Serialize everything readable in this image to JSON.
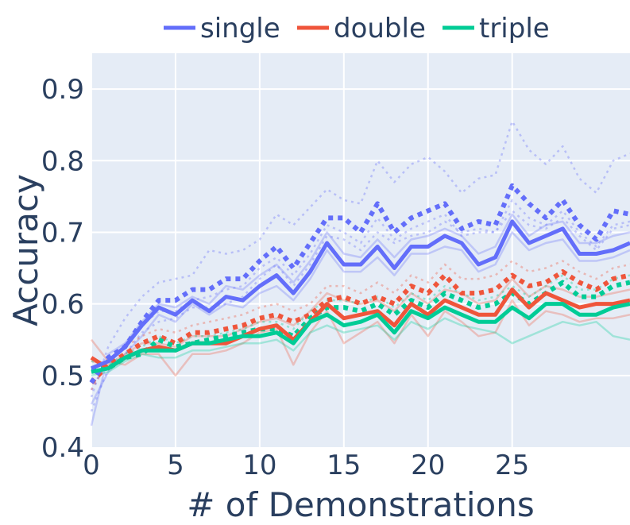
{
  "chart_data": {
    "type": "line",
    "title": "",
    "xlabel": "# of Demonstrations",
    "ylabel": "Accuracy",
    "xlim": [
      0,
      32
    ],
    "ylim": [
      0.4,
      0.95
    ],
    "xticks": [
      0,
      5,
      10,
      15,
      20,
      25
    ],
    "xtick_labels": [
      "0",
      "5",
      "10",
      "15",
      "20",
      "25"
    ],
    "yticks": [
      0.4,
      0.5,
      0.6,
      0.7,
      0.8,
      0.9
    ],
    "ytick_labels": [
      "0.4",
      "0.5",
      "0.6",
      "0.7",
      "0.8",
      "0.9"
    ],
    "grid": true,
    "legend_position": "top",
    "colors": {
      "single": "#636efa",
      "double": "#ef553b",
      "triple": "#00cc96",
      "plot_bg": "#e5ecf6",
      "grid": "#ffffff",
      "text": "#2a3f5f"
    },
    "x": [
      0,
      1,
      2,
      3,
      4,
      5,
      6,
      7,
      8,
      9,
      10,
      11,
      12,
      13,
      14,
      15,
      16,
      17,
      18,
      19,
      20,
      21,
      22,
      23,
      24,
      25,
      26,
      27,
      28,
      29,
      30,
      31,
      32
    ],
    "series": [
      {
        "name": "single",
        "role": "main",
        "color": "#636efa",
        "values": [
          0.51,
          0.52,
          0.54,
          0.57,
          0.595,
          0.585,
          0.605,
          0.59,
          0.61,
          0.605,
          0.625,
          0.64,
          0.615,
          0.645,
          0.685,
          0.655,
          0.655,
          0.68,
          0.65,
          0.68,
          0.68,
          0.695,
          0.685,
          0.655,
          0.665,
          0.715,
          0.685,
          0.695,
          0.705,
          0.67,
          0.67,
          0.675,
          0.685
        ]
      },
      {
        "name": "single dotted",
        "role": "dotted",
        "color": "#636efa",
        "values": [
          0.49,
          0.525,
          0.54,
          0.575,
          0.605,
          0.605,
          0.62,
          0.62,
          0.635,
          0.635,
          0.66,
          0.68,
          0.65,
          0.685,
          0.72,
          0.72,
          0.7,
          0.74,
          0.7,
          0.72,
          0.73,
          0.74,
          0.705,
          0.715,
          0.71,
          0.765,
          0.74,
          0.72,
          0.745,
          0.71,
          0.69,
          0.73,
          0.725
        ]
      },
      {
        "name": "double",
        "role": "main",
        "color": "#ef553b",
        "values": [
          0.525,
          0.51,
          0.525,
          0.535,
          0.54,
          0.535,
          0.545,
          0.545,
          0.545,
          0.555,
          0.565,
          0.57,
          0.55,
          0.575,
          0.6,
          0.58,
          0.585,
          0.59,
          0.57,
          0.6,
          0.585,
          0.605,
          0.595,
          0.585,
          0.585,
          0.62,
          0.595,
          0.615,
          0.605,
          0.595,
          0.6,
          0.6,
          0.605
        ]
      },
      {
        "name": "double dotted",
        "role": "dotted",
        "color": "#ef553b",
        "values": [
          0.49,
          0.515,
          0.53,
          0.545,
          0.555,
          0.545,
          0.56,
          0.56,
          0.565,
          0.57,
          0.58,
          0.585,
          0.575,
          0.585,
          0.605,
          0.61,
          0.6,
          0.61,
          0.6,
          0.625,
          0.615,
          0.64,
          0.615,
          0.615,
          0.62,
          0.64,
          0.625,
          0.63,
          0.645,
          0.63,
          0.62,
          0.635,
          0.64
        ]
      },
      {
        "name": "triple",
        "role": "main",
        "color": "#00cc96",
        "values": [
          0.505,
          0.51,
          0.525,
          0.535,
          0.535,
          0.535,
          0.545,
          0.545,
          0.55,
          0.555,
          0.555,
          0.56,
          0.545,
          0.575,
          0.585,
          0.57,
          0.575,
          0.585,
          0.56,
          0.59,
          0.58,
          0.595,
          0.585,
          0.575,
          0.575,
          0.595,
          0.58,
          0.6,
          0.6,
          0.585,
          0.585,
          0.595,
          0.6
        ]
      },
      {
        "name": "triple dotted",
        "role": "dotted",
        "color": "#00cc96",
        "values": [
          0.51,
          0.51,
          0.525,
          0.53,
          0.55,
          0.54,
          0.545,
          0.55,
          0.555,
          0.56,
          0.565,
          0.565,
          0.555,
          0.58,
          0.595,
          0.595,
          0.59,
          0.6,
          0.585,
          0.605,
          0.595,
          0.615,
          0.605,
          0.595,
          0.6,
          0.615,
          0.6,
          0.615,
          0.63,
          0.61,
          0.61,
          0.625,
          0.63
        ]
      }
    ],
    "faint_series": [
      {
        "color": "#636efa",
        "style": "solid",
        "values": [
          0.43,
          0.53,
          0.545,
          0.575,
          0.6,
          0.595,
          0.61,
          0.6,
          0.625,
          0.62,
          0.64,
          0.655,
          0.63,
          0.66,
          0.7,
          0.67,
          0.665,
          0.69,
          0.665,
          0.69,
          0.695,
          0.705,
          0.695,
          0.67,
          0.68,
          0.725,
          0.695,
          0.71,
          0.715,
          0.685,
          0.685,
          0.695,
          0.7
        ]
      },
      {
        "color": "#636efa",
        "style": "solid",
        "values": [
          0.46,
          0.505,
          0.53,
          0.555,
          0.585,
          0.575,
          0.6,
          0.585,
          0.6,
          0.595,
          0.615,
          0.625,
          0.605,
          0.635,
          0.675,
          0.645,
          0.645,
          0.665,
          0.64,
          0.67,
          0.67,
          0.68,
          0.675,
          0.645,
          0.655,
          0.7,
          0.675,
          0.685,
          0.69,
          0.66,
          0.66,
          0.665,
          0.675
        ]
      },
      {
        "color": "#636efa",
        "style": "dotted",
        "values": [
          0.47,
          0.54,
          0.58,
          0.61,
          0.63,
          0.635,
          0.64,
          0.675,
          0.67,
          0.675,
          0.69,
          0.725,
          0.71,
          0.735,
          0.76,
          0.745,
          0.74,
          0.8,
          0.77,
          0.795,
          0.805,
          0.785,
          0.755,
          0.775,
          0.78,
          0.855,
          0.815,
          0.795,
          0.82,
          0.775,
          0.755,
          0.8,
          0.81
        ]
      },
      {
        "color": "#636efa",
        "style": "dotted",
        "values": [
          0.48,
          0.52,
          0.54,
          0.57,
          0.59,
          0.59,
          0.605,
          0.61,
          0.62,
          0.625,
          0.65,
          0.665,
          0.64,
          0.67,
          0.71,
          0.7,
          0.685,
          0.72,
          0.69,
          0.705,
          0.715,
          0.725,
          0.695,
          0.7,
          0.7,
          0.745,
          0.72,
          0.71,
          0.73,
          0.7,
          0.68,
          0.71,
          0.715
        ]
      },
      {
        "color": "#636efa",
        "style": "dotted",
        "values": [
          0.45,
          0.51,
          0.53,
          0.56,
          0.575,
          0.58,
          0.595,
          0.595,
          0.6,
          0.61,
          0.635,
          0.655,
          0.625,
          0.655,
          0.695,
          0.69,
          0.675,
          0.7,
          0.685,
          0.695,
          0.7,
          0.715,
          0.7,
          0.705,
          0.7,
          0.73,
          0.71,
          0.705,
          0.72,
          0.695,
          0.675,
          0.705,
          0.71
        ]
      },
      {
        "color": "#ef553b",
        "style": "solid",
        "values": [
          0.55,
          0.52,
          0.515,
          0.53,
          0.53,
          0.5,
          0.53,
          0.53,
          0.535,
          0.545,
          0.56,
          0.565,
          0.515,
          0.56,
          0.59,
          0.545,
          0.56,
          0.575,
          0.545,
          0.585,
          0.555,
          0.59,
          0.575,
          0.555,
          0.56,
          0.605,
          0.57,
          0.59,
          0.585,
          0.575,
          0.58,
          0.58,
          0.585
        ]
      },
      {
        "color": "#ef553b",
        "style": "solid",
        "values": [
          0.52,
          0.515,
          0.53,
          0.545,
          0.545,
          0.54,
          0.555,
          0.555,
          0.555,
          0.565,
          0.575,
          0.58,
          0.57,
          0.59,
          0.615,
          0.605,
          0.6,
          0.605,
          0.59,
          0.615,
          0.6,
          0.62,
          0.615,
          0.6,
          0.605,
          0.635,
          0.61,
          0.625,
          0.62,
          0.61,
          0.61,
          0.615,
          0.62
        ]
      },
      {
        "color": "#ef553b",
        "style": "dotted",
        "values": [
          0.48,
          0.52,
          0.54,
          0.555,
          0.565,
          0.56,
          0.57,
          0.575,
          0.58,
          0.585,
          0.595,
          0.6,
          0.59,
          0.6,
          0.625,
          0.625,
          0.615,
          0.63,
          0.615,
          0.64,
          0.63,
          0.655,
          0.635,
          0.635,
          0.64,
          0.66,
          0.645,
          0.65,
          0.66,
          0.645,
          0.635,
          0.65,
          0.655
        ]
      },
      {
        "color": "#00cc96",
        "style": "solid",
        "values": [
          0.5,
          0.505,
          0.52,
          0.53,
          0.525,
          0.525,
          0.535,
          0.535,
          0.54,
          0.545,
          0.545,
          0.55,
          0.535,
          0.56,
          0.57,
          0.56,
          0.565,
          0.57,
          0.55,
          0.575,
          0.565,
          0.58,
          0.57,
          0.565,
          0.56,
          0.545,
          0.555,
          0.565,
          0.575,
          0.57,
          0.575,
          0.555,
          0.55
        ]
      },
      {
        "color": "#00cc96",
        "style": "dotted",
        "values": [
          0.52,
          0.515,
          0.53,
          0.54,
          0.555,
          0.545,
          0.555,
          0.555,
          0.56,
          0.565,
          0.575,
          0.575,
          0.565,
          0.59,
          0.605,
          0.605,
          0.6,
          0.61,
          0.595,
          0.615,
          0.605,
          0.625,
          0.615,
          0.605,
          0.61,
          0.625,
          0.61,
          0.625,
          0.64,
          0.62,
          0.62,
          0.635,
          0.64
        ]
      }
    ],
    "legend": [
      {
        "label": "single",
        "color": "#636efa"
      },
      {
        "label": "double",
        "color": "#ef553b"
      },
      {
        "label": "triple",
        "color": "#00cc96"
      }
    ]
  }
}
